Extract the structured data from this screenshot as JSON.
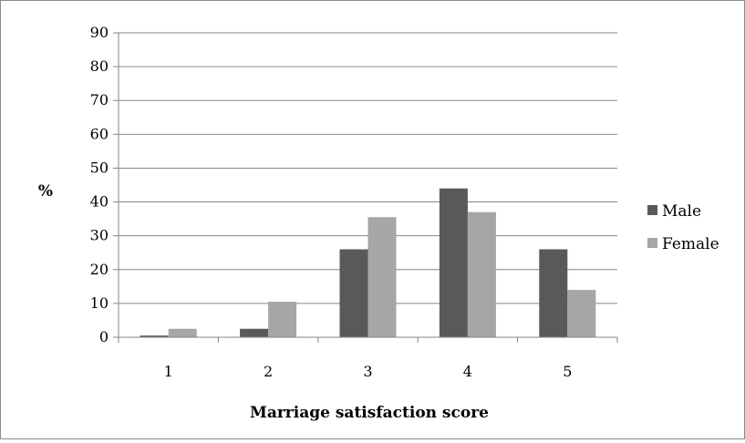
{
  "chart_data": {
    "type": "bar",
    "title": "",
    "xlabel": "Marriage satisfaction score",
    "ylabel": "%",
    "categories": [
      "1",
      "2",
      "3",
      "4",
      "5"
    ],
    "ylim": [
      0,
      90
    ],
    "yticks": [
      0,
      10,
      20,
      30,
      40,
      50,
      60,
      70,
      80,
      90
    ],
    "grid": true,
    "legend_position": "right",
    "series": [
      {
        "name": "Male",
        "color": "#595959",
        "values": [
          0.5,
          2.5,
          26,
          44,
          26
        ]
      },
      {
        "name": "Female",
        "color": "#a6a6a6",
        "values": [
          2.5,
          10.5,
          35.5,
          37,
          14
        ]
      }
    ]
  }
}
